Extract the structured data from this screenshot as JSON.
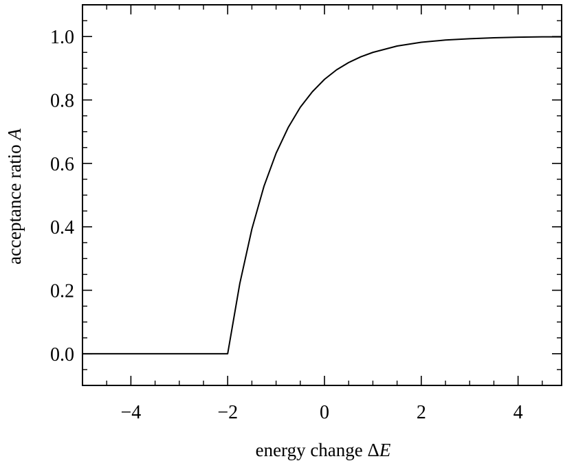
{
  "chart_data": {
    "type": "line",
    "title": "",
    "xlabel": "energy change ΔE",
    "xlabel_parts": {
      "prefix": "energy change Δ",
      "var": "E"
    },
    "ylabel": "acceptance ratio A",
    "ylabel_parts": {
      "prefix": "acceptance ratio ",
      "var": "A"
    },
    "xlim": [
      -5,
      4.9
    ],
    "ylim": [
      -0.1,
      1.1
    ],
    "xticks": [
      -4,
      -2,
      0,
      2,
      4
    ],
    "xtick_labels": [
      "−4",
      "−2",
      "0",
      "2",
      "4"
    ],
    "yticks": [
      0.0,
      0.2,
      0.4,
      0.6,
      0.8,
      1.0
    ],
    "ytick_labels": [
      "0.0",
      "0.2",
      "0.4",
      "0.6",
      "0.8",
      "1.0"
    ],
    "grid": false,
    "legend": "none",
    "line_color": "#000000",
    "series": [
      {
        "x": [
          -5,
          -4,
          -3,
          -2,
          -1.75,
          -1.5,
          -1.25,
          -1,
          -0.75,
          -0.5,
          -0.25,
          0,
          0.25,
          0.5,
          0.75,
          1,
          1.5,
          2,
          2.5,
          3,
          3.5,
          4,
          4.5,
          4.9
        ],
        "y": [
          0,
          0,
          0,
          0,
          0.221,
          0.393,
          0.528,
          0.632,
          0.713,
          0.777,
          0.826,
          0.865,
          0.895,
          0.918,
          0.936,
          0.95,
          0.97,
          0.982,
          0.989,
          0.993,
          0.996,
          0.998,
          0.999,
          0.999
        ]
      }
    ]
  }
}
